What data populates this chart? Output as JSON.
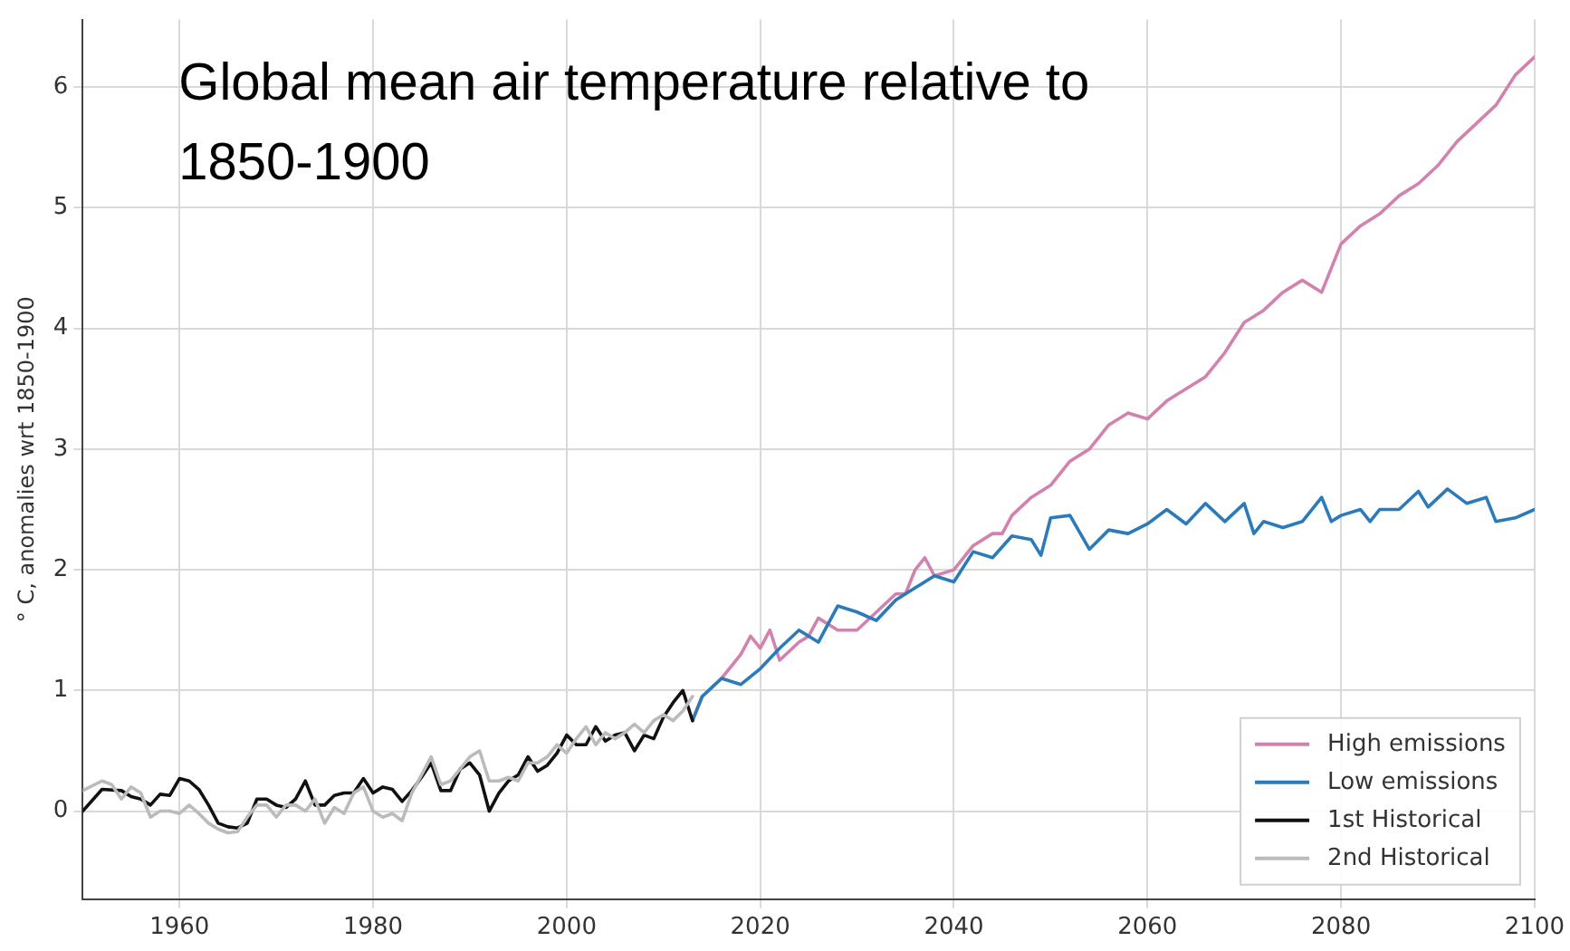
{
  "chart_data": {
    "type": "line",
    "title": "Global mean air temperature relative to 1850-1900",
    "ylabel": "° C, anomalies wrt 1850-1900",
    "xlim": [
      1950,
      2100
    ],
    "xticks": [
      1960,
      1980,
      2000,
      2020,
      2040,
      2060,
      2080,
      2100
    ],
    "ylim": [
      -0.73,
      6.56
    ],
    "yticks": [
      0,
      1,
      2,
      3,
      4,
      5,
      6
    ],
    "grid": true,
    "legend": "bottom right",
    "marker": "none",
    "line_style": "solid",
    "series": [
      {
        "name": "High emissions",
        "color": "#d182ae",
        "x": [
          2013,
          2014,
          2016,
          2018,
          2019,
          2020,
          2021,
          2022,
          2024,
          2025,
          2026,
          2028,
          2030,
          2032,
          2034,
          2035,
          2036,
          2037,
          2038,
          2040,
          2042,
          2044,
          2045,
          2046,
          2048,
          2050,
          2052,
          2054,
          2055,
          2056,
          2058,
          2060,
          2062,
          2064,
          2066,
          2068,
          2070,
          2072,
          2074,
          2076,
          2078,
          2080,
          2082,
          2084,
          2086,
          2088,
          2090,
          2092,
          2094,
          2096,
          2098,
          2100
        ],
        "values": [
          0.75,
          0.95,
          1.1,
          1.3,
          1.45,
          1.35,
          1.5,
          1.25,
          1.4,
          1.45,
          1.6,
          1.5,
          1.5,
          1.65,
          1.8,
          1.8,
          2.0,
          2.1,
          1.95,
          2.0,
          2.2,
          2.3,
          2.3,
          2.45,
          2.6,
          2.7,
          2.9,
          3.0,
          3.1,
          3.2,
          3.3,
          3.25,
          3.4,
          3.5,
          3.6,
          3.8,
          4.05,
          4.15,
          4.3,
          4.4,
          4.3,
          4.7,
          4.85,
          4.95,
          5.1,
          5.2,
          5.35,
          5.55,
          5.7,
          5.85,
          6.1,
          6.25
        ]
      },
      {
        "name": "Low emissions",
        "color": "#2b7bba",
        "x": [
          2013,
          2014,
          2016,
          2018,
          2020,
          2022,
          2024,
          2026,
          2028,
          2030,
          2032,
          2034,
          2036,
          2038,
          2040,
          2042,
          2044,
          2046,
          2048,
          2049,
          2050,
          2052,
          2054,
          2056,
          2058,
          2060,
          2062,
          2064,
          2066,
          2068,
          2070,
          2071,
          2072,
          2074,
          2076,
          2078,
          2079,
          2080,
          2082,
          2083,
          2084,
          2086,
          2088,
          2089,
          2091,
          2093,
          2095,
          2096,
          2098,
          2100
        ],
        "values": [
          0.75,
          0.95,
          1.1,
          1.05,
          1.18,
          1.35,
          1.5,
          1.4,
          1.7,
          1.65,
          1.58,
          1.75,
          1.85,
          1.95,
          1.9,
          2.15,
          2.1,
          2.28,
          2.25,
          2.12,
          2.43,
          2.45,
          2.17,
          2.33,
          2.3,
          2.38,
          2.5,
          2.38,
          2.55,
          2.4,
          2.55,
          2.3,
          2.4,
          2.35,
          2.4,
          2.6,
          2.4,
          2.45,
          2.5,
          2.4,
          2.5,
          2.5,
          2.65,
          2.52,
          2.67,
          2.55,
          2.6,
          2.4,
          2.43,
          2.5
        ]
      },
      {
        "name": "1st Historical",
        "color": "#111111",
        "x": [
          1950,
          1952,
          1954,
          1955,
          1956,
          1957,
          1958,
          1959,
          1960,
          1961,
          1962,
          1963,
          1964,
          1965,
          1966,
          1967,
          1968,
          1969,
          1970,
          1971,
          1972,
          1973,
          1974,
          1975,
          1976,
          1977,
          1978,
          1979,
          1980,
          1981,
          1982,
          1983,
          1984,
          1985,
          1986,
          1987,
          1988,
          1989,
          1990,
          1991,
          1992,
          1993,
          1994,
          1995,
          1996,
          1997,
          1998,
          1999,
          2000,
          2001,
          2002,
          2003,
          2004,
          2005,
          2006,
          2007,
          2008,
          2009,
          2010,
          2011,
          2012,
          2013
        ],
        "values": [
          0.0,
          0.18,
          0.17,
          0.12,
          0.1,
          0.05,
          0.14,
          0.13,
          0.27,
          0.25,
          0.18,
          0.05,
          -0.1,
          -0.13,
          -0.14,
          -0.1,
          0.1,
          0.1,
          0.05,
          0.03,
          0.1,
          0.25,
          0.05,
          0.05,
          0.13,
          0.15,
          0.15,
          0.27,
          0.15,
          0.2,
          0.18,
          0.08,
          0.17,
          0.28,
          0.4,
          0.17,
          0.17,
          0.35,
          0.4,
          0.3,
          0.0,
          0.15,
          0.25,
          0.3,
          0.45,
          0.33,
          0.38,
          0.48,
          0.63,
          0.55,
          0.55,
          0.7,
          0.58,
          0.63,
          0.65,
          0.5,
          0.63,
          0.6,
          0.78,
          0.9,
          1.0,
          0.75
        ]
      },
      {
        "name": "2nd Historical",
        "color": "#bbbbbb",
        "x": [
          1950,
          1952,
          1953,
          1954,
          1955,
          1956,
          1957,
          1958,
          1959,
          1960,
          1961,
          1962,
          1963,
          1964,
          1965,
          1966,
          1967,
          1968,
          1969,
          1970,
          1971,
          1972,
          1973,
          1974,
          1975,
          1976,
          1977,
          1978,
          1979,
          1980,
          1981,
          1982,
          1983,
          1984,
          1985,
          1986,
          1987,
          1988,
          1989,
          1990,
          1991,
          1992,
          1993,
          1994,
          1995,
          1996,
          1997,
          1998,
          1999,
          2000,
          2001,
          2002,
          2003,
          2004,
          2005,
          2006,
          2007,
          2008,
          2009,
          2010,
          2011,
          2012,
          2013
        ],
        "values": [
          0.17,
          0.25,
          0.22,
          0.1,
          0.2,
          0.15,
          -0.05,
          0.0,
          0.0,
          -0.02,
          0.05,
          -0.02,
          -0.1,
          -0.15,
          -0.18,
          -0.17,
          -0.05,
          0.05,
          0.05,
          -0.05,
          0.05,
          0.05,
          0.0,
          0.1,
          -0.1,
          0.03,
          -0.02,
          0.15,
          0.2,
          0.0,
          -0.05,
          -0.02,
          -0.08,
          0.15,
          0.3,
          0.45,
          0.22,
          0.25,
          0.35,
          0.45,
          0.5,
          0.25,
          0.25,
          0.28,
          0.25,
          0.4,
          0.4,
          0.45,
          0.55,
          0.48,
          0.6,
          0.7,
          0.55,
          0.65,
          0.6,
          0.65,
          0.72,
          0.65,
          0.75,
          0.8,
          0.75,
          0.83,
          0.95
        ]
      }
    ]
  }
}
